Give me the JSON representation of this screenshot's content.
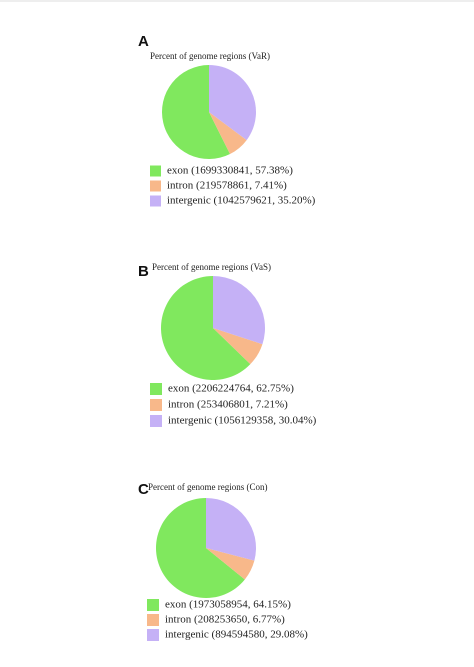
{
  "chart_data": [
    {
      "type": "pie",
      "panel_label": "A",
      "title": "Percent of genome regions (VaR)",
      "categories": [
        "exon",
        "intron",
        "intergenic"
      ],
      "values": [
        57.38,
        7.41,
        35.2
      ],
      "legend_labels": [
        "exon (1699330841, 57.38%)",
        "intron (219578861, 7.41%)",
        "intergenic (1042579621, 35.20%)"
      ],
      "colors": [
        "#80e85e",
        "#f8b88a",
        "#c5b1f6"
      ]
    },
    {
      "type": "pie",
      "panel_label": "B",
      "title": "Percent of genome regions (VaS)",
      "categories": [
        "exon",
        "intron",
        "intergenic"
      ],
      "values": [
        62.75,
        7.21,
        30.04
      ],
      "legend_labels": [
        "exon (2206224764, 62.75%)",
        "intron (253406801, 7.21%)",
        "intergenic (1056129358, 30.04%)"
      ],
      "colors": [
        "#80e85e",
        "#f8b88a",
        "#c5b1f6"
      ]
    },
    {
      "type": "pie",
      "panel_label": "C",
      "title": "Percent of genome regions (Con)",
      "categories": [
        "exon",
        "intron",
        "intergenic"
      ],
      "values": [
        64.15,
        6.77,
        29.08
      ],
      "legend_labels": [
        "exon (1973058954, 64.15%)",
        "intron (208253650, 6.77%)",
        "intergenic (894594580, 29.08%)"
      ],
      "colors": [
        "#80e85e",
        "#f8b88a",
        "#c5b1f6"
      ]
    }
  ]
}
